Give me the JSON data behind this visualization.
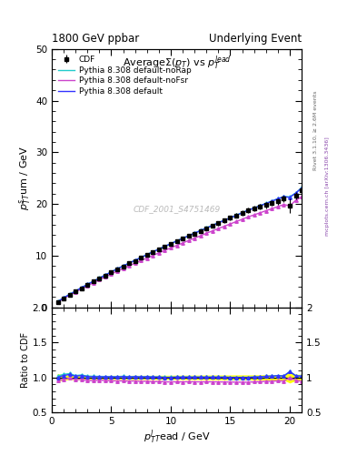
{
  "title_left": "1800 GeV ppbar",
  "title_right": "Underlying Event",
  "plot_title": "Average$\\Sigma(p_T)$ vs $p_T^{lead}$",
  "xlabel": "$p_T^l$$_{T}$ead / GeV",
  "ylabel_main": "$p_T^s$$_{T}$um / GeV",
  "ylabel_ratio": "Ratio to CDF",
  "watermark": "CDF_2001_S4751469",
  "rivet_text": "Rivet 3.1.10, ≥ 2.6M events",
  "arxiv_text": "mcplots.cern.ch [arXiv:1306.3436]",
  "xlim": [
    0,
    21
  ],
  "ylim_main": [
    0,
    50
  ],
  "ylim_ratio": [
    0.5,
    2.0
  ],
  "x_data": [
    0.5,
    1.0,
    1.5,
    2.0,
    2.5,
    3.0,
    3.5,
    4.0,
    4.5,
    5.0,
    5.5,
    6.0,
    6.5,
    7.0,
    7.5,
    8.0,
    8.5,
    9.0,
    9.5,
    10.0,
    10.5,
    11.0,
    11.5,
    12.0,
    12.5,
    13.0,
    13.5,
    14.0,
    14.5,
    15.0,
    15.5,
    16.0,
    16.5,
    17.0,
    17.5,
    18.0,
    18.5,
    19.0,
    19.5,
    20.0,
    20.5,
    21.0
  ],
  "cdf_y": [
    1.1,
    1.8,
    2.4,
    3.1,
    3.7,
    4.4,
    5.0,
    5.6,
    6.2,
    6.8,
    7.4,
    7.9,
    8.5,
    9.0,
    9.6,
    10.1,
    10.7,
    11.2,
    11.8,
    12.3,
    12.8,
    13.3,
    13.8,
    14.3,
    14.8,
    15.3,
    15.8,
    16.3,
    16.8,
    17.3,
    17.8,
    18.3,
    18.8,
    19.1,
    19.5,
    19.8,
    20.2,
    20.5,
    21.0,
    19.7,
    21.6,
    22.7
  ],
  "cdf_yerr": [
    0.05,
    0.05,
    0.06,
    0.07,
    0.08,
    0.09,
    0.1,
    0.1,
    0.12,
    0.14,
    0.15,
    0.16,
    0.17,
    0.19,
    0.2,
    0.21,
    0.22,
    0.24,
    0.25,
    0.27,
    0.29,
    0.3,
    0.32,
    0.34,
    0.36,
    0.38,
    0.4,
    0.42,
    0.44,
    0.46,
    0.48,
    0.5,
    0.52,
    0.54,
    0.56,
    0.58,
    0.6,
    0.62,
    0.65,
    1.4,
    0.75,
    0.85
  ],
  "pythia_default_y": [
    1.1,
    1.85,
    2.5,
    3.15,
    3.8,
    4.45,
    5.05,
    5.65,
    6.25,
    6.85,
    7.45,
    8.0,
    8.55,
    9.1,
    9.65,
    10.2,
    10.75,
    11.25,
    11.8,
    12.3,
    12.85,
    13.35,
    13.85,
    14.35,
    14.85,
    15.35,
    15.85,
    16.35,
    16.85,
    17.3,
    17.8,
    18.3,
    18.8,
    19.2,
    19.65,
    20.1,
    20.55,
    21.0,
    21.4,
    21.3,
    22.1,
    23.1
  ],
  "pythia_nofsr_y": [
    1.05,
    1.75,
    2.38,
    3.0,
    3.6,
    4.2,
    4.78,
    5.38,
    5.93,
    6.48,
    7.02,
    7.52,
    8.05,
    8.55,
    9.05,
    9.55,
    10.05,
    10.55,
    11.05,
    11.5,
    12.0,
    12.45,
    12.95,
    13.4,
    13.85,
    14.35,
    14.8,
    15.25,
    15.7,
    16.15,
    16.6,
    17.05,
    17.5,
    17.9,
    18.3,
    18.7,
    19.1,
    19.5,
    19.9,
    19.65,
    20.7,
    21.4
  ],
  "pythia_norap_y": [
    1.12,
    1.88,
    2.53,
    3.18,
    3.83,
    4.48,
    5.08,
    5.68,
    6.28,
    6.88,
    7.48,
    8.03,
    8.58,
    9.13,
    9.68,
    10.23,
    10.78,
    11.28,
    11.83,
    12.33,
    12.88,
    13.38,
    13.88,
    14.38,
    14.88,
    15.38,
    15.88,
    16.38,
    16.88,
    17.33,
    17.83,
    18.33,
    18.83,
    19.23,
    19.68,
    20.13,
    20.58,
    21.03,
    21.43,
    21.38,
    22.15,
    23.15
  ],
  "cdf_color": "#000000",
  "pythia_default_color": "#3333ff",
  "pythia_nofsr_color": "#cc44cc",
  "pythia_norap_color": "#22cccc",
  "bg_color": "#ffffff",
  "ratio_band_color": "#ffff00",
  "ratio_band2_color": "#88ff88"
}
